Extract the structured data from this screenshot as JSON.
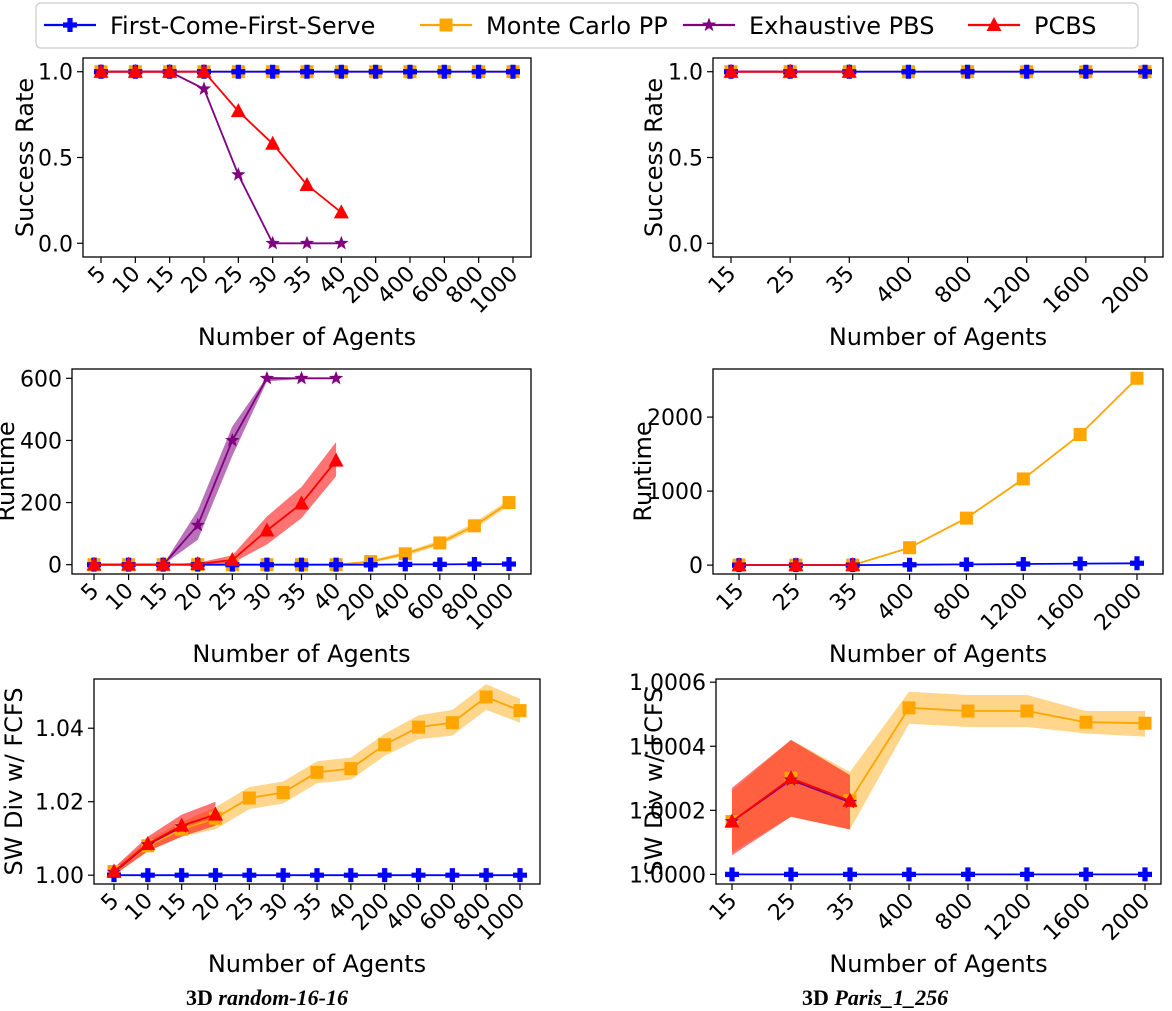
{
  "legend": {
    "placement": "top-center",
    "entries": [
      {
        "label": "First-Come-First-Serve",
        "color": "#0000ff",
        "marker": "plus"
      },
      {
        "label": "Monte Carlo PP",
        "color": "#ffa500",
        "marker": "square"
      },
      {
        "label": "Exhaustive PBS",
        "color": "#800080",
        "marker": "star"
      },
      {
        "label": "PCBS",
        "color": "#ff0000",
        "marker": "triangle"
      }
    ]
  },
  "captions": {
    "left_prefix": "3D ",
    "left_name": "random-16-16",
    "right_prefix": "3D ",
    "right_name": "Paris_1_256"
  },
  "chart_data": [
    {
      "type": "line",
      "xlabel": "Number of Agents",
      "ylabel": "Success Rate",
      "categories": [
        "5",
        "10",
        "15",
        "20",
        "25",
        "30",
        "35",
        "40",
        "200",
        "400",
        "600",
        "800",
        "1000"
      ],
      "ylim": [
        -0.08,
        1.08
      ],
      "yticks": [
        "0.0",
        "0.5",
        "1.0"
      ],
      "ytick_values": [
        0,
        0.5,
        1
      ],
      "series": [
        {
          "name": "First-Come-First-Serve",
          "values": [
            1,
            1,
            1,
            1,
            1,
            1,
            1,
            1,
            1,
            1,
            1,
            1,
            1
          ]
        },
        {
          "name": "Monte Carlo PP",
          "values": [
            1,
            1,
            1,
            1,
            1,
            1,
            1,
            1,
            1,
            1,
            1,
            1,
            1
          ]
        },
        {
          "name": "Exhaustive PBS",
          "values": [
            1,
            1,
            1,
            0.9,
            0.4,
            0,
            0,
            0,
            null,
            null,
            null,
            null,
            null
          ]
        },
        {
          "name": "PCBS",
          "values": [
            1,
            1,
            1,
            1,
            0.77,
            0.58,
            0.34,
            0.18,
            null,
            null,
            null,
            null,
            null
          ]
        }
      ]
    },
    {
      "type": "line",
      "xlabel": "Number of Agents",
      "ylabel": "Success Rate",
      "categories": [
        "15",
        "25",
        "35",
        "400",
        "800",
        "1200",
        "1600",
        "2000"
      ],
      "ylim": [
        -0.08,
        1.08
      ],
      "yticks": [
        "0.0",
        "0.5",
        "1.0"
      ],
      "ytick_values": [
        0,
        0.5,
        1
      ],
      "series": [
        {
          "name": "First-Come-First-Serve",
          "values": [
            1,
            1,
            1,
            1,
            1,
            1,
            1,
            1
          ]
        },
        {
          "name": "Monte Carlo PP",
          "values": [
            1,
            1,
            1,
            1,
            1,
            1,
            1,
            1
          ]
        },
        {
          "name": "Exhaustive PBS",
          "values": [
            1,
            1,
            1,
            null,
            null,
            null,
            null,
            null
          ]
        },
        {
          "name": "PCBS",
          "values": [
            1,
            1,
            1,
            null,
            null,
            null,
            null,
            null
          ]
        }
      ]
    },
    {
      "type": "line",
      "xlabel": "Number of Agents",
      "ylabel": "Runtime",
      "categories": [
        "5",
        "10",
        "15",
        "20",
        "25",
        "30",
        "35",
        "40",
        "200",
        "400",
        "600",
        "800",
        "1000"
      ],
      "ylim": [
        -30,
        630
      ],
      "yticks": [
        "0",
        "200",
        "400",
        "600"
      ],
      "ytick_values": [
        0,
        200,
        400,
        600
      ],
      "series": [
        {
          "name": "First-Come-First-Serve",
          "values": [
            0,
            0,
            0,
            0,
            0,
            0,
            0,
            0,
            0,
            1,
            1,
            2,
            2
          ]
        },
        {
          "name": "Monte Carlo PP",
          "values": [
            0,
            0,
            0,
            0,
            0,
            0,
            0,
            0,
            10,
            35,
            70,
            125,
            200
          ],
          "band": [
            [
              0,
              0
            ],
            [
              0,
              0
            ],
            [
              0,
              0
            ],
            [
              0,
              0
            ],
            [
              0,
              0
            ],
            [
              0,
              0
            ],
            [
              0,
              0
            ],
            [
              0,
              0
            ],
            [
              6,
              14
            ],
            [
              28,
              42
            ],
            [
              62,
              78
            ],
            [
              115,
              135
            ],
            [
              190,
              210
            ]
          ]
        },
        {
          "name": "Exhaustive PBS",
          "values": [
            0,
            0,
            0,
            127,
            400,
            600,
            600,
            600,
            null,
            null,
            null,
            null,
            null
          ],
          "band": [
            [
              0,
              0
            ],
            [
              0,
              0
            ],
            [
              0,
              0
            ],
            [
              80,
              175
            ],
            [
              350,
              445
            ],
            [
              590,
              605
            ],
            [
              598,
              602
            ],
            [
              598,
              602
            ],
            null,
            null,
            null,
            null,
            null
          ]
        },
        {
          "name": "PCBS",
          "values": [
            0,
            0,
            0,
            2,
            15,
            110,
            197,
            335,
            null,
            null,
            null,
            null,
            null
          ],
          "band": [
            [
              0,
              0
            ],
            [
              0,
              0
            ],
            [
              0,
              0
            ],
            [
              0,
              6
            ],
            [
              5,
              30
            ],
            [
              65,
              155
            ],
            [
              150,
              250
            ],
            [
              285,
              395
            ],
            null,
            null,
            null,
            null,
            null
          ]
        }
      ]
    },
    {
      "type": "line",
      "xlabel": "Number of Agents",
      "ylabel": "Runtime",
      "categories": [
        "15",
        "25",
        "35",
        "400",
        "800",
        "1200",
        "1600",
        "2000"
      ],
      "ylim": [
        -120,
        2650
      ],
      "yticks": [
        "0",
        "1000",
        "2000"
      ],
      "ytick_values": [
        0,
        1000,
        2000
      ],
      "series": [
        {
          "name": "First-Come-First-Serve",
          "values": [
            0,
            0,
            0,
            5,
            10,
            15,
            20,
            25
          ]
        },
        {
          "name": "Monte Carlo PP",
          "values": [
            0,
            0,
            0,
            235,
            635,
            1165,
            1765,
            2525
          ]
        },
        {
          "name": "Exhaustive PBS",
          "values": [
            0,
            0,
            0,
            null,
            null,
            null,
            null,
            null
          ]
        },
        {
          "name": "PCBS",
          "values": [
            0,
            0,
            0,
            null,
            null,
            null,
            null,
            null
          ]
        }
      ]
    },
    {
      "type": "line",
      "xlabel": "Number of Agents",
      "ylabel": "SW Div w/ FCFS",
      "categories": [
        "5",
        "10",
        "15",
        "20",
        "25",
        "30",
        "35",
        "40",
        "200",
        "400",
        "600",
        "800",
        "1000"
      ],
      "ylim": [
        0.9976,
        1.0534
      ],
      "yticks": [
        "1.00",
        "1.02",
        "1.04"
      ],
      "ytick_values": [
        1.0,
        1.02,
        1.04
      ],
      "series": [
        {
          "name": "First-Come-First-Serve",
          "values": [
            1,
            1,
            1,
            1,
            1,
            1,
            1,
            1,
            1,
            1,
            1,
            1,
            1
          ]
        },
        {
          "name": "Monte Carlo PP",
          "values": [
            1.001,
            1.008,
            1.0125,
            1.0155,
            1.021,
            1.0225,
            1.028,
            1.029,
            1.0355,
            1.0403,
            1.0415,
            1.0485,
            1.0448
          ],
          "band": [
            [
              1.0,
              1.002
            ],
            [
              1.0065,
              1.0095
            ],
            [
              1.0105,
              1.0145
            ],
            [
              1.0125,
              1.0185
            ],
            [
              1.018,
              1.024
            ],
            [
              1.0195,
              1.0255
            ],
            [
              1.025,
              1.031
            ],
            [
              1.026,
              1.032
            ],
            [
              1.0325,
              1.0385
            ],
            [
              1.037,
              1.0435
            ],
            [
              1.038,
              1.045
            ],
            [
              1.045,
              1.052
            ],
            [
              1.0415,
              1.048
            ]
          ]
        },
        {
          "name": "Exhaustive PBS",
          "values": [
            1.0008,
            1.0083,
            1.0132,
            null,
            null,
            null,
            null,
            null,
            null,
            null,
            null,
            null,
            null
          ]
        },
        {
          "name": "PCBS",
          "values": [
            1.001,
            1.0085,
            1.0135,
            1.0165,
            null,
            null,
            null,
            null,
            null,
            null,
            null,
            null,
            null
          ],
          "band": [
            [
              1.0,
              1.002
            ],
            [
              1.0065,
              1.0105
            ],
            [
              1.0105,
              1.0165
            ],
            [
              1.0135,
              1.02
            ],
            null,
            null,
            null,
            null,
            null,
            null,
            null,
            null,
            null
          ]
        }
      ]
    },
    {
      "type": "line",
      "xlabel": "Number of Agents",
      "ylabel": "SW Div w/ FCFS",
      "categories": [
        "15",
        "25",
        "35",
        "400",
        "800",
        "1200",
        "1600",
        "2000"
      ],
      "ylim": [
        0.99997,
        1.00061
      ],
      "yticks": [
        "1.0000",
        "1.0002",
        "1.0004",
        "1.0006"
      ],
      "ytick_values": [
        1.0,
        1.0002,
        1.0004,
        1.0006
      ],
      "series": [
        {
          "name": "First-Come-First-Serve",
          "values": [
            1,
            1,
            1,
            1,
            1,
            1,
            1,
            1
          ]
        },
        {
          "name": "Monte Carlo PP",
          "values": [
            1.000165,
            1.0003,
            1.00023,
            1.00052,
            1.00051,
            1.00051,
            1.000475,
            1.000472
          ],
          "band": [
            [
              1.00007,
              1.00026
            ],
            [
              1.00018,
              1.00042
            ],
            [
              1.00014,
              1.00032
            ],
            [
              1.00047,
              1.00057
            ],
            [
              1.00046,
              1.00056
            ],
            [
              1.00046,
              1.00056
            ],
            [
              1.00044,
              1.00051
            ],
            [
              1.00043,
              1.00051
            ]
          ]
        },
        {
          "name": "Exhaustive PBS",
          "values": [
            1.000165,
            1.000295,
            1.000225,
            null,
            null,
            null,
            null,
            null
          ]
        },
        {
          "name": "PCBS",
          "values": [
            1.000165,
            1.0003,
            1.00023,
            null,
            null,
            null,
            null,
            null
          ],
          "band": [
            [
              1.00006,
              1.00027
            ],
            [
              1.00018,
              1.00042
            ],
            [
              1.00014,
              1.00031
            ],
            null,
            null,
            null,
            null,
            null
          ]
        }
      ]
    }
  ]
}
